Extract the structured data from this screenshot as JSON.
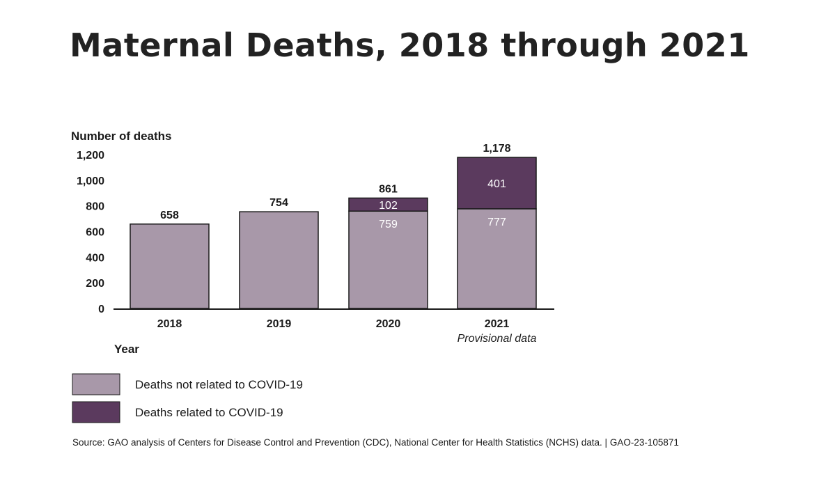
{
  "header": {
    "title": "Maternal Deaths, 2018 through 2021"
  },
  "chart_data": {
    "type": "bar",
    "stacked": true,
    "ylabel": "Number of deaths",
    "xlabel": "Year",
    "ylim": [
      0,
      1200
    ],
    "yticks": [
      0,
      200,
      400,
      600,
      800,
      1000,
      1200
    ],
    "ytick_labels": [
      "0",
      "200",
      "400",
      "600",
      "800",
      "1,000",
      "1,200"
    ],
    "categories": [
      "2018",
      "2019",
      "2020",
      "2021"
    ],
    "category_notes": [
      "",
      "",
      "",
      "Provisional data"
    ],
    "series": [
      {
        "name": "Deaths not related to COVID-19",
        "values": [
          658,
          754,
          759,
          777
        ],
        "color": "#a898a9"
      },
      {
        "name": "Deaths related to COVID-19",
        "values": [
          0,
          0,
          102,
          401
        ],
        "color": "#5b3a5e"
      }
    ],
    "segment_labels": [
      [
        "",
        "",
        "759",
        "777"
      ],
      [
        "",
        "",
        "102",
        "401"
      ]
    ],
    "totals": [
      658,
      754,
      861,
      1178
    ],
    "total_labels": [
      "658",
      "754",
      "861",
      "1,178"
    ],
    "legend_position": "bottom-left",
    "grid": false
  },
  "source": {
    "text": "Source: GAO analysis of Centers for Disease Control and Prevention (CDC), National Center for Health Statistics (NCHS) data.  |  GAO-23-105871"
  }
}
